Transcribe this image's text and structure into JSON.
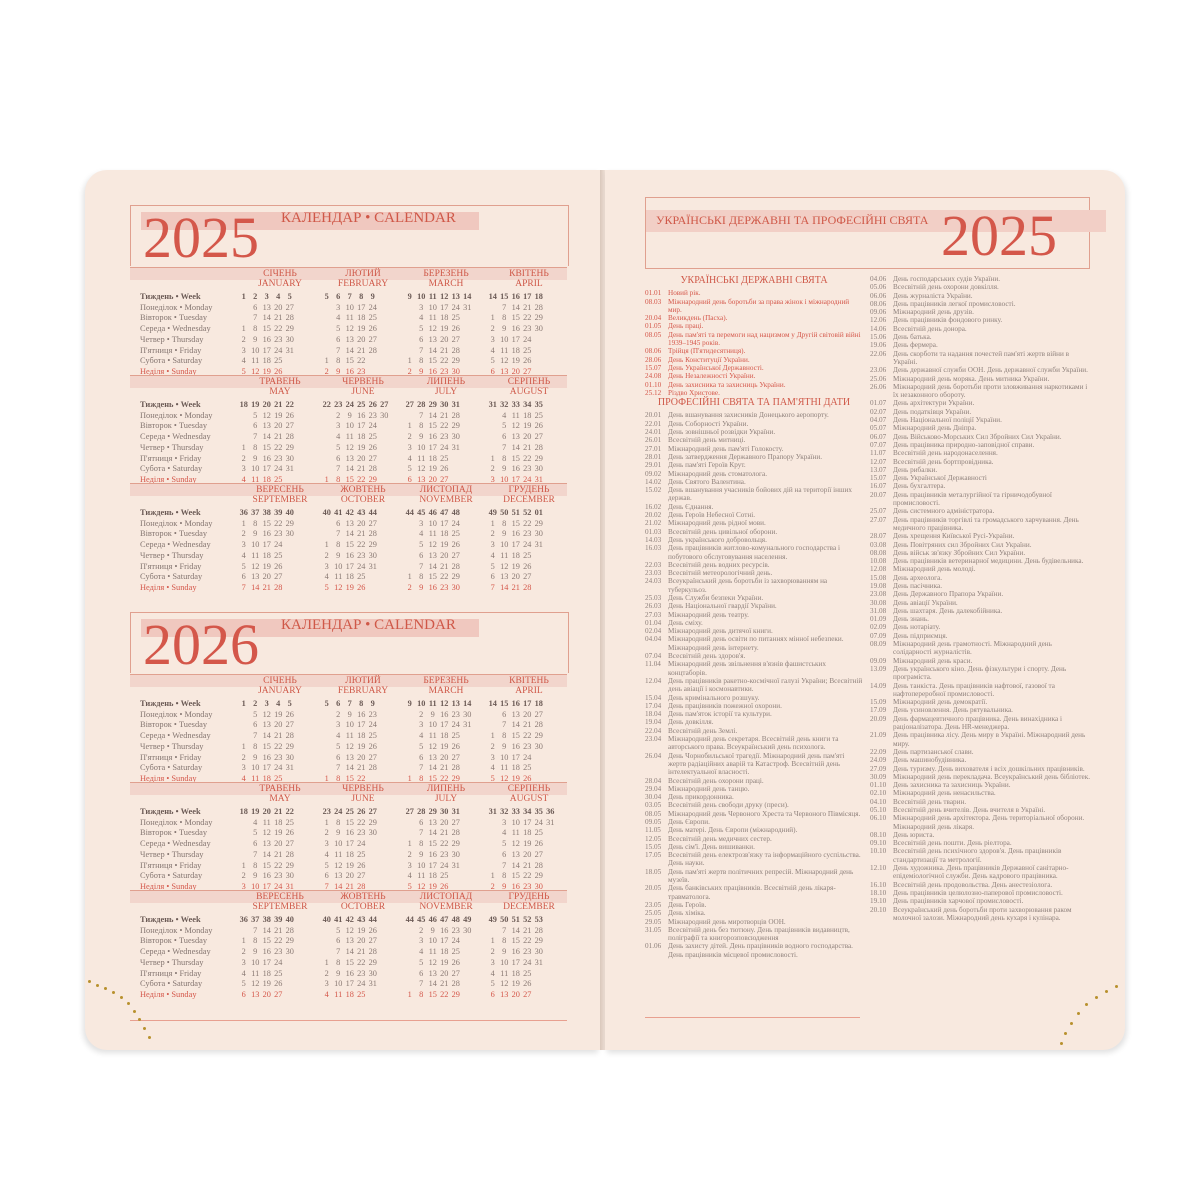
{
  "weekday_labels": [
    "Тиждень • Week",
    "Понеділок • Monday",
    "Вівторок • Tuesday",
    "Середа • Wednesday",
    "Четвер • Thursday",
    "П'ятниця • Friday",
    "Субота • Saturday",
    "Неділя • Sunday"
  ],
  "calendar_title": "КАЛЕНДАР • CALENDAR",
  "months": [
    [
      "СІЧЕНЬ",
      "JANUARY"
    ],
    [
      "ЛЮТИЙ",
      "FEBRUARY"
    ],
    [
      "БЕРЕЗЕНЬ",
      "MARCH"
    ],
    [
      "КВІТЕНЬ",
      "APRIL"
    ],
    [
      "ТРАВЕНЬ",
      "MAY"
    ],
    [
      "ЧЕРВЕНЬ",
      "JUNE"
    ],
    [
      "ЛИПЕНЬ",
      "JULY"
    ],
    [
      "СЕРПЕНЬ",
      "AUGUST"
    ],
    [
      "ВЕРЕСЕНЬ",
      "SEPTEMBER"
    ],
    [
      "ЖОВТЕНЬ",
      "OCTOBER"
    ],
    [
      "ЛИСТОПАД",
      "NOVEMBER"
    ],
    [
      "ГРУДЕНЬ",
      "DECEMBER"
    ]
  ],
  "years": [
    "2025",
    "2026"
  ],
  "holidays_page": {
    "title": "УКРАЇНСЬКІ ДЕРЖАВНІ ТА ПРОФЕСІЙНІ СВЯТА",
    "year": "2025",
    "state_heading": "УКРАЇНСЬКІ ДЕРЖАВНІ СВЯТА",
    "state": [
      [
        "01.01",
        "Новий рік."
      ],
      [
        "08.03",
        "Міжнародний день боротьби за права жінок і міжнародний мир."
      ],
      [
        "20.04",
        "Великдень (Пасха)."
      ],
      [
        "01.05",
        "День праці."
      ],
      [
        "08.05",
        "День пам'яті та перемоги над нацизмом у Другій світовій війні 1939–1945 років."
      ],
      [
        "08.06",
        "Трійця (П'ятидесятниця)."
      ],
      [
        "28.06",
        "День Конституції України."
      ],
      [
        "15.07",
        "День Української Державності."
      ],
      [
        "24.08",
        "День Незалежності України."
      ],
      [
        "01.10",
        "День захисника та захисниць України."
      ],
      [
        "25.12",
        "Різдво Христове."
      ]
    ],
    "prof_heading": "ПРОФЕСІЙНІ СВЯТА ТА ПАМ'ЯТНІ ДАТИ",
    "prof_col1": [
      [
        "20.01",
        "День вшанування захисників Донецького аеропорту."
      ],
      [
        "22.01",
        "День Соборності України."
      ],
      [
        "24.01",
        "День зовнішньої розвідки України."
      ],
      [
        "26.01",
        "Всесвітній день митниці."
      ],
      [
        "27.01",
        "Міжнародний день пам'яті Голокосту."
      ],
      [
        "28.01",
        "День затвердження Державного Прапору України."
      ],
      [
        "29.01",
        "День пам'яті Героїв Крут."
      ],
      [
        "09.02",
        "Міжнародний день стоматолога."
      ],
      [
        "14.02",
        "День Святого Валентина."
      ],
      [
        "15.02",
        "День вшанування учасників бойових дій на території інших держав."
      ],
      [
        "16.02",
        "День Єднання."
      ],
      [
        "20.02",
        "День Героїв Небесної Сотні."
      ],
      [
        "21.02",
        "Міжнародний день рідної мови."
      ],
      [
        "01.03",
        "Всесвітній день цивільної оборони."
      ],
      [
        "14.03",
        "День українського добровольця."
      ],
      [
        "16.03",
        "День працівників житлово-комунального господарства і побутового обслуговування населення."
      ],
      [
        "22.03",
        "Всесвітній день водних ресурсів."
      ],
      [
        "23.03",
        "Всесвітній метеорологічний день."
      ],
      [
        "24.03",
        "Всеукраїнський день боротьби із захворюванням на туберкульоз."
      ],
      [
        "25.03",
        "День Служби безпеки України."
      ],
      [
        "26.03",
        "День Національної гвардії України."
      ],
      [
        "27.03",
        "Міжнародний день театру."
      ],
      [
        "01.04",
        "День сміху."
      ],
      [
        "02.04",
        "Міжнародний день дитячої книги."
      ],
      [
        "04.04",
        "Міжнародний день освіти по питаннях мінної небезпеки. Міжнародний день інтернету."
      ],
      [
        "07.04",
        "Всесвітній день здоров'я."
      ],
      [
        "11.04",
        "Міжнародний день звільнення в'язнів фашистських концтаборів."
      ],
      [
        "12.04",
        "День працівників ракетно-космічної галузі України; Всесвітній день авіації і космонавтики."
      ],
      [
        "15.04",
        "День кримінального розшуку."
      ],
      [
        "17.04",
        "День працівників пожежної охорони."
      ],
      [
        "18.04",
        "День пам'яток історії та культури."
      ],
      [
        "19.04",
        "День довкілля."
      ],
      [
        "22.04",
        "Всесвітній день Землі."
      ],
      [
        "23.04",
        "Міжнародний день секретаря. Всесвітній день книги та авторського права. Всеукраїнський день психолога."
      ],
      [
        "26.04",
        "День Чорнобильської трагедії. Міжнародний день пам'яті жертв радіаційних аварій та Катастроф. Всесвітній день інтелектуальної власності."
      ],
      [
        "28.04",
        "Всесвітній день охорони праці."
      ],
      [
        "29.04",
        "Міжнародний день танцю."
      ],
      [
        "30.04",
        "День прикордонника."
      ],
      [
        "03.05",
        "Всесвітній день свободи друку (преси)."
      ],
      [
        "08.05",
        "Міжнародний день Червоного Хреста та Червоного Півмісяця."
      ],
      [
        "09.05",
        "День Європи."
      ],
      [
        "11.05",
        "День матері. День Європи (міжнародний)."
      ],
      [
        "12.05",
        "Всесвітній день медичних сестер."
      ],
      [
        "15.05",
        "День сім'ї. День вишиванки."
      ],
      [
        "17.05",
        "Всесвітній день електрозв'язку та інформаційного суспільства. День науки."
      ],
      [
        "18.05",
        "День пам'яті жертв політичних репресій. Міжнародний день музеїв."
      ],
      [
        "20.05",
        "День банківських працівників. Всесвітній день лікаря-травматолога."
      ],
      [
        "23.05",
        "День Героїв."
      ],
      [
        "25.05",
        "День хіміка."
      ],
      [
        "29.05",
        "Міжнародний день миротворців ООН."
      ],
      [
        "31.05",
        "Всесвітній день без тютюну. День працівників видавництв, поліграфії та книгорозповсюдження"
      ],
      [
        "01.06",
        "День захисту дітей. День працівників водного господарства. День працівників місцевої промисловості."
      ]
    ],
    "prof_col2": [
      [
        "04.06",
        "День господарських судів України."
      ],
      [
        "05.06",
        "Всесвітній день охорони довкілля."
      ],
      [
        "06.06",
        "День журналіста України."
      ],
      [
        "08.06",
        "День працівників легкої промисловості."
      ],
      [
        "09.06",
        "Міжнародний день друзів."
      ],
      [
        "12.06",
        "День працівників фондового ринку."
      ],
      [
        "14.06",
        "Всесвітній день донора."
      ],
      [
        "15.06",
        "День батька."
      ],
      [
        "19.06",
        "День фермера."
      ],
      [
        "22.06",
        "День скорботи та надання почестей пам'яті жертв війни в Україні."
      ],
      [
        "23.06",
        "День державної служби ООН. День державної служби України."
      ],
      [
        "25.06",
        "Міжнародний день моряка. День митника України."
      ],
      [
        "26.06",
        "Міжнародний день боротьби проти зловживання наркотиками і їх незаконного обороту."
      ],
      [
        "01.07",
        "День архітектури України."
      ],
      [
        "02.07",
        "День податківця України."
      ],
      [
        "04.07",
        "День Національної поліції України."
      ],
      [
        "05.07",
        "Міжнародний день Дніпра."
      ],
      [
        "06.07",
        "День Військово-Морських Сил Збройних Сил України."
      ],
      [
        "07.07",
        "День працівника природно-заповідної справи."
      ],
      [
        "11.07",
        "Всесвітній день народонаселення."
      ],
      [
        "12.07",
        "Всесвітній день бортпровідника."
      ],
      [
        "13.07",
        "День рибалки."
      ],
      [
        "15.07",
        "День Української Державності"
      ],
      [
        "16.07",
        "День бухгалтера."
      ],
      [
        "20.07",
        "День працівників металургійної та гірничодобувної промисловості."
      ],
      [
        "25.07",
        "День системного адміністратора."
      ],
      [
        "27.07",
        "День працівників торгівлі та громадського харчування. День медичного працівника."
      ],
      [
        "28.07",
        "День хрещення Київської Русі-України."
      ],
      [
        "03.08",
        "День Повітряних сил Збройних Сил України."
      ],
      [
        "08.08",
        "День військ зв'язку Збройних Сил України."
      ],
      [
        "10.08",
        "День працівників ветеринарної медицини. День будівельника."
      ],
      [
        "12.08",
        "Міжнародний день молоді."
      ],
      [
        "15.08",
        "День археолога."
      ],
      [
        "19.08",
        "День пасічника."
      ],
      [
        "23.08",
        "День Державного Прапора України."
      ],
      [
        "30.08",
        "День авіації України."
      ],
      [
        "31.08",
        "День шахтаря. День далекобійника."
      ],
      [
        "01.09",
        "День знань."
      ],
      [
        "02.09",
        "День нотаріату."
      ],
      [
        "07.09",
        "День підприємця."
      ],
      [
        "08.09",
        "Міжнародний день грамотності. Міжнародний день солідарності журналістів."
      ],
      [
        "09.09",
        "Міжнародний день краси."
      ],
      [
        "13.09",
        "День українського кіно. День фізкультури і спорту. День програміста."
      ],
      [
        "14.09",
        "День танкіста. День працівників нафтової, газової та нафтопереробної промисловості."
      ],
      [
        "15.09",
        "Міжнародний день демократії."
      ],
      [
        "17.09",
        "День усиновлення. День рятувальника."
      ],
      [
        "20.09",
        "День фармацевтичного працівника. День винахідника і раціоналізатора. День HR-менеджера."
      ],
      [
        "21.09",
        "День працівника лісу. День миру в Україні. Міжнародний день миру."
      ],
      [
        "22.09",
        "День партизанської слави."
      ],
      [
        "24.09",
        "День машинобудівника."
      ],
      [
        "27.09",
        "День туризму. День вихователя і всіх дошкільних працівників."
      ],
      [
        "30.09",
        "Міжнародний день перекладача. Всеукраїнський день бібліотек."
      ],
      [
        "01.10",
        "День захисника та захисниць України."
      ],
      [
        "02.10",
        "Міжнародний день ненасильства."
      ],
      [
        "04.10",
        "Всесвітній день тварин."
      ],
      [
        "05.10",
        "Всесвітній день вчителів. День вчителя в Україні."
      ],
      [
        "06.10",
        "Міжнародний день архітектора. День територіальної оборони. Міжнародний день лікаря."
      ],
      [
        "08.10",
        "День юриста."
      ],
      [
        "09.10",
        "Всесвітній день пошти. День ріелтора."
      ],
      [
        "10.10",
        "Всесвітній день психічного здоров'я. День працівників стандартизації та метрології."
      ],
      [
        "12.10",
        "День художника. День працівників Державної санітарно-епідеміологічної служби. День кадрового працівника."
      ],
      [
        "16.10",
        "Всесвітній день продовольства. День анестезіолога."
      ],
      [
        "18.10",
        "День працівників целюлозно-паперової промисловості."
      ],
      [
        "19.10",
        "День працівників харчової промисловості."
      ],
      [
        "20.10",
        "Всеукраїнський день боротьби проти захворювання раком молочної залози. Міжнародний день кухаря і кулінара."
      ]
    ]
  },
  "colors": {
    "accent": "#d4574a",
    "paper": "#f8e9df",
    "text": "#8e807b"
  }
}
